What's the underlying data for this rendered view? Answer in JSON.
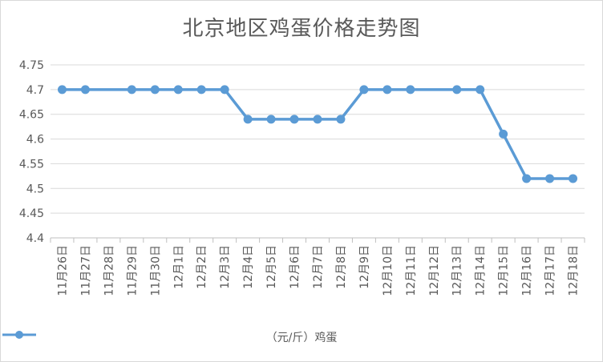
{
  "chart_data": {
    "type": "line",
    "title": "北京地区鸡蛋价格走势图",
    "categories": [
      "11月26日",
      "11月27日",
      "11月28日",
      "11月29日",
      "11月30日",
      "12月1日",
      "12月2日",
      "12月3日",
      "12月4日",
      "12月5日",
      "12月6日",
      "12月7日",
      "12月8日",
      "12月9日",
      "12月10日",
      "12月11日",
      "12月12日",
      "12月13日",
      "12月14日",
      "12月15日",
      "12月16日",
      "12月17日",
      "12月18日"
    ],
    "series": [
      {
        "name": "（元/斤）鸡蛋",
        "values": [
          4.7,
          4.7,
          null,
          4.7,
          4.7,
          4.7,
          4.7,
          4.7,
          4.64,
          4.64,
          4.64,
          4.64,
          4.64,
          4.7,
          4.7,
          4.7,
          null,
          4.7,
          4.7,
          4.61,
          4.52,
          4.52,
          4.52
        ],
        "color": "#5b9bd5"
      }
    ],
    "y_ticks": [
      "4.4",
      "4.45",
      "4.5",
      "4.55",
      "4.6",
      "4.65",
      "4.7",
      "4.75"
    ],
    "ylim": [
      4.4,
      4.75
    ],
    "grid": true,
    "legend_position": "bottom"
  }
}
